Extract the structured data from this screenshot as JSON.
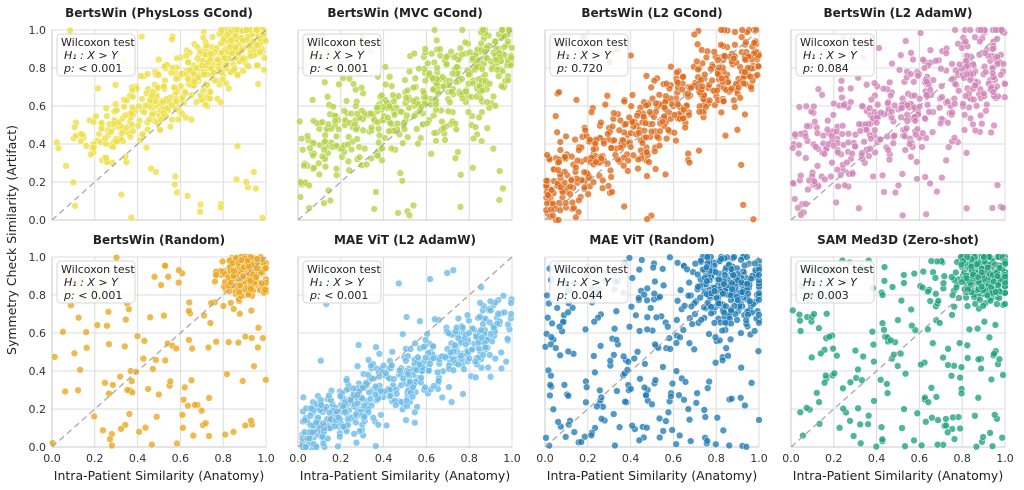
{
  "figure": {
    "xlabel": "Intra-Patient Similarity (Anatomy)",
    "ylabel": "Symmetry Check Similarity (Artifact)",
    "annotation_title": "Wilcoxon test",
    "hypothesis": "H₁ : X > Y",
    "p_label": "p:"
  },
  "chart_data": [
    {
      "type": "scatter",
      "title": "BertsWin (PhysLoss GCond)",
      "color": "#ecdf43",
      "p_value": "< 0.001",
      "n": 500,
      "xlim": [
        0,
        1
      ],
      "ylim": [
        0,
        1
      ],
      "xticks": [
        "0.0",
        "0.2",
        "0.4",
        "0.6",
        "0.8",
        "1.0"
      ],
      "yticks": [
        "0.0",
        "0.2",
        "0.4",
        "0.6",
        "0.8",
        "1.0"
      ],
      "gen": {
        "mode": "band",
        "xmin": 0.05,
        "xmax": 1.0,
        "xskew": 0.55,
        "slope": 0.7,
        "intercept": 0.29,
        "sd": 0.09,
        "noise": 0.08,
        "seed": 11
      }
    },
    {
      "type": "scatter",
      "title": "BertsWin (MVC GCond)",
      "color": "#b5d245",
      "p_value": "< 0.001",
      "n": 500,
      "xlim": [
        0,
        1
      ],
      "ylim": [
        0,
        1
      ],
      "xticks": [
        "0.0",
        "0.2",
        "0.4",
        "0.6",
        "0.8",
        "1.0"
      ],
      "yticks": [
        "0.0",
        "0.2",
        "0.4",
        "0.6",
        "0.8",
        "1.0"
      ],
      "gen": {
        "mode": "band",
        "xmin": 0.0,
        "xmax": 1.0,
        "xskew": 0.7,
        "slope": 0.55,
        "intercept": 0.33,
        "sd": 0.12,
        "noise": 0.1,
        "seed": 23
      }
    },
    {
      "type": "scatter",
      "title": "BertsWin (L2 GCond)",
      "color": "#de6a1b",
      "p_value": "0.720",
      "n": 500,
      "xlim": [
        0,
        1
      ],
      "ylim": [
        0,
        1
      ],
      "xticks": [
        "0.0",
        "0.2",
        "0.4",
        "0.6",
        "0.8",
        "1.0"
      ],
      "yticks": [
        "0.0",
        "0.2",
        "0.4",
        "0.6",
        "0.8",
        "1.0"
      ],
      "gen": {
        "mode": "band",
        "xmin": 0.0,
        "xmax": 1.0,
        "xskew": 1.0,
        "slope": 0.75,
        "intercept": 0.15,
        "sd": 0.12,
        "noise": 0.06,
        "seed": 37
      }
    },
    {
      "type": "scatter",
      "title": "BertsWin (L2 AdamW)",
      "color": "#d183b6",
      "p_value": "0.084",
      "n": 450,
      "xlim": [
        0,
        1
      ],
      "ylim": [
        0,
        1
      ],
      "xticks": [
        "0.0",
        "0.2",
        "0.4",
        "0.6",
        "0.8",
        "1.0"
      ],
      "yticks": [
        "0.0",
        "0.2",
        "0.4",
        "0.6",
        "0.8",
        "1.0"
      ],
      "gen": {
        "mode": "band",
        "xmin": 0.0,
        "xmax": 1.0,
        "xskew": 0.85,
        "slope": 0.55,
        "intercept": 0.28,
        "sd": 0.14,
        "noise": 0.12,
        "seed": 53
      }
    },
    {
      "type": "scatter",
      "title": "BertsWin (Random)",
      "color": "#e9a71f",
      "p_value": "< 0.001",
      "n": 380,
      "xlim": [
        0,
        1
      ],
      "ylim": [
        0,
        1
      ],
      "xticks": [
        "0.0",
        "0.2",
        "0.4",
        "0.6",
        "0.8",
        "1.0"
      ],
      "yticks": [
        "0.0",
        "0.2",
        "0.4",
        "0.6",
        "0.8",
        "1.0"
      ],
      "gen": {
        "mode": "cluster",
        "cx": 0.9,
        "cy": 0.9,
        "spread": 0.055,
        "frac": 0.62,
        "seed": 71
      }
    },
    {
      "type": "scatter",
      "title": "MAE ViT (L2 AdamW)",
      "color": "#6bbbe8",
      "p_value": "< 0.001",
      "n": 550,
      "xlim": [
        0,
        1
      ],
      "ylim": [
        0,
        1
      ],
      "xticks": [
        "0.0",
        "0.2",
        "0.4",
        "0.6",
        "0.8",
        "1.0"
      ],
      "yticks": [
        "0.0",
        "0.2",
        "0.4",
        "0.6",
        "0.8",
        "1.0"
      ],
      "gen": {
        "mode": "band",
        "xmin": 0.02,
        "xmax": 1.0,
        "xskew": 1.15,
        "slope": 0.6,
        "intercept": 0.06,
        "sd": 0.09,
        "noise": 0.03,
        "seed": 89
      }
    },
    {
      "type": "scatter",
      "title": "MAE ViT (Random)",
      "color": "#1f7bb5",
      "p_value": "0.044",
      "n": 500,
      "xlim": [
        0,
        1
      ],
      "ylim": [
        0,
        1
      ],
      "xticks": [
        "0.0",
        "0.2",
        "0.4",
        "0.6",
        "0.8",
        "1.0"
      ],
      "yticks": [
        "0.0",
        "0.2",
        "0.4",
        "0.6",
        "0.8",
        "1.0"
      ],
      "gen": {
        "mode": "cluster",
        "cx": 0.85,
        "cy": 0.84,
        "spread": 0.09,
        "frac": 0.45,
        "seed": 97
      }
    },
    {
      "type": "scatter",
      "title": "SAM Med3D (Zero-shot)",
      "color": "#1ea17c",
      "p_value": "0.003",
      "n": 480,
      "xlim": [
        0,
        1
      ],
      "ylim": [
        0,
        1
      ],
      "xticks": [
        "0.0",
        "0.2",
        "0.4",
        "0.6",
        "0.8",
        "1.0"
      ],
      "yticks": [
        "0.0",
        "0.2",
        "0.4",
        "0.6",
        "0.8",
        "1.0"
      ],
      "gen": {
        "mode": "cluster",
        "cx": 0.9,
        "cy": 0.9,
        "spread": 0.07,
        "frac": 0.55,
        "seed": 113
      }
    }
  ]
}
